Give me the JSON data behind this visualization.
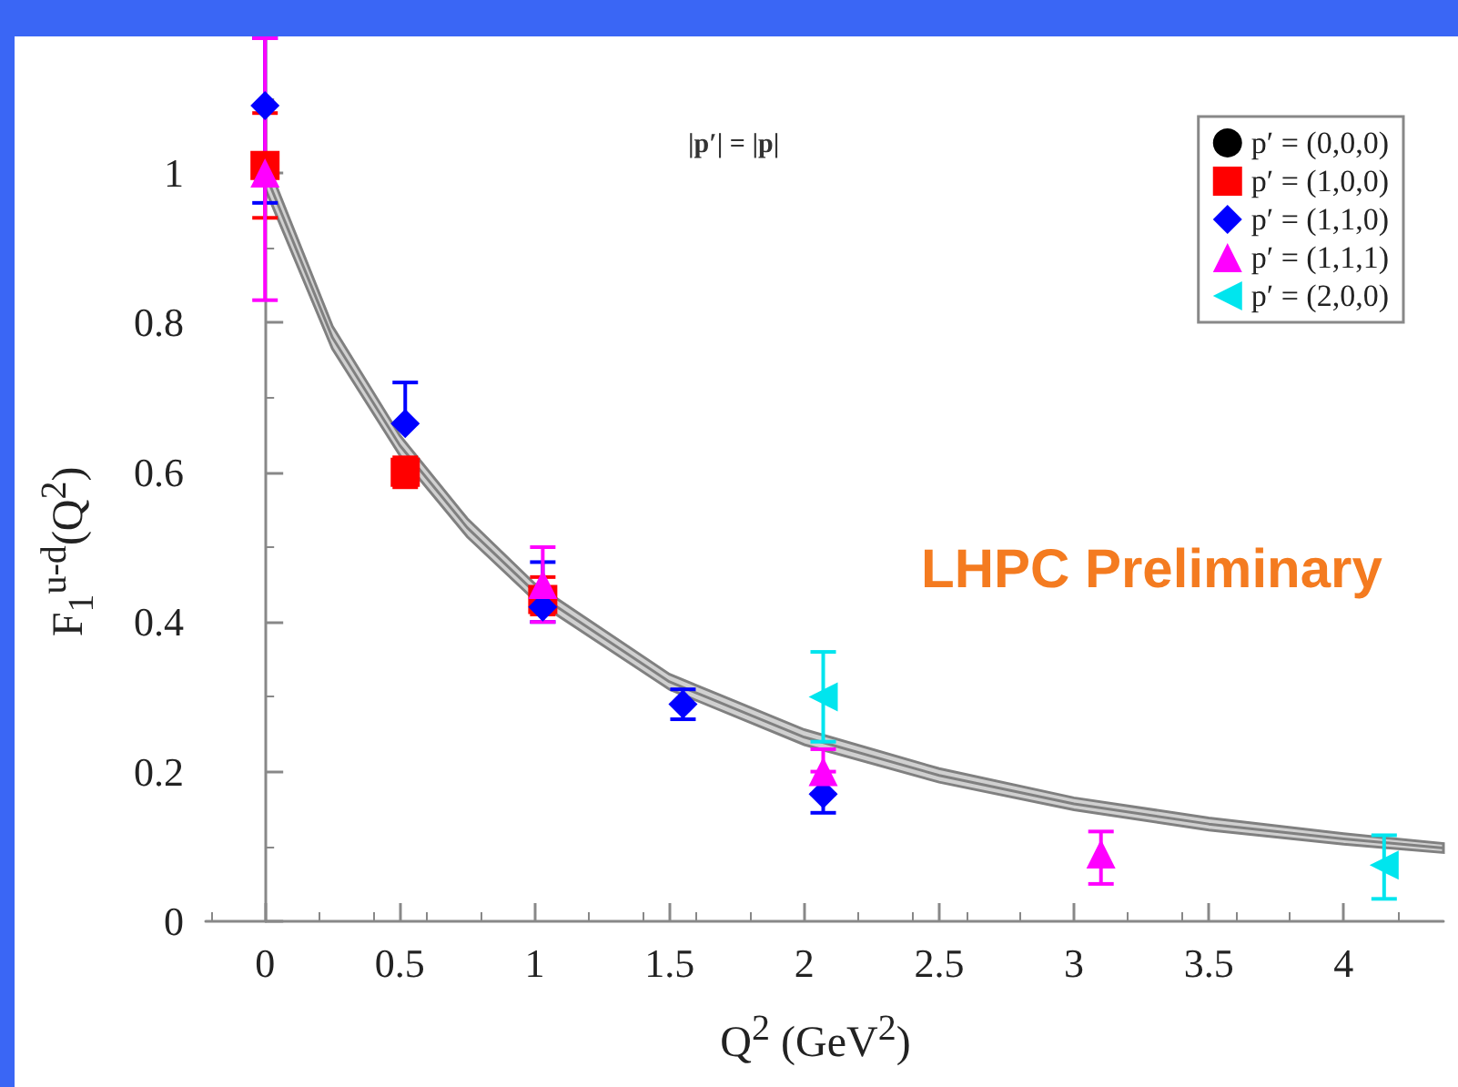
{
  "chart_data": {
    "type": "scatter",
    "xlabel": "Q$^{2}$  (GeV$^{2}$)",
    "ylabel": "F$_{1}$$^{u-d}$(Q$^{2}$)",
    "xlim": [
      -0.22,
      4.37
    ],
    "xticks": [
      0,
      0.5,
      1,
      1.5,
      2,
      2.5,
      3,
      3.5,
      4
    ],
    "ylim": [
      0,
      1.18
    ],
    "yticks": [
      0,
      0.2,
      0.4,
      0.6,
      0.8,
      1
    ],
    "grid": false,
    "legend": "top right",
    "annotations": [
      "|p′| = |p|",
      "LHPC Preliminary"
    ],
    "series": [
      {
        "name": "p′ = (0,0,0)",
        "color": "#000000",
        "marker": "circle"
      },
      {
        "name": "p′ = (1,0,0)",
        "color": "#ff0000",
        "marker": "square",
        "x": [
          0,
          0.52,
          1.03
        ],
        "values": [
          1.01,
          0.6,
          0.43
        ],
        "errors": [
          [
            0.94,
            1.08
          ],
          [
            0.58,
            0.62
          ],
          [
            0.41,
            0.46
          ]
        ]
      },
      {
        "name": "p′ = (1,1,0)",
        "color": "#0000ff",
        "marker": "diamond",
        "x": [
          0,
          0.52,
          1.03,
          1.55,
          2.07
        ],
        "values": [
          1.09,
          0.665,
          0.42,
          0.29,
          0.17
        ],
        "errors": [
          [
            0.96,
            1.18
          ],
          [
            0.665,
            0.72
          ],
          [
            0.4,
            0.48
          ],
          [
            0.27,
            0.31
          ],
          [
            0.145,
            0.17
          ]
        ]
      },
      {
        "name": "p′ = (1,1,1)",
        "color": "#ff00ff",
        "marker": "triangle",
        "x": [
          0,
          1.03,
          2.07,
          3.1
        ],
        "values": [
          1.0,
          0.45,
          0.2,
          0.09
        ],
        "errors": [
          [
            0.83,
            1.18
          ],
          [
            0.4,
            0.5
          ],
          [
            0.2,
            0.23
          ],
          [
            0.05,
            0.12
          ]
        ]
      },
      {
        "name": "p′ = (2,0,0)",
        "color": "#00e5ee",
        "marker": "triangle-left",
        "x": [
          2.07,
          4.15
        ],
        "values": [
          0.3,
          0.075
        ],
        "errors": [
          [
            0.24,
            0.36
          ],
          [
            0.03,
            0.115
          ]
        ]
      },
      {
        "type": "line",
        "color": "#808080",
        "marker": "none",
        "x": [
          0,
          0.25,
          0.5,
          0.75,
          1,
          1.5,
          2,
          2.5,
          3,
          3.5,
          4,
          4.37
        ],
        "values": [
          1.0,
          0.78,
          0.636,
          0.526,
          0.44,
          0.32,
          0.246,
          0.195,
          0.157,
          0.13,
          0.11,
          0.098
        ],
        "lower": [
          0.98,
          0.765,
          0.623,
          0.514,
          0.429,
          0.31,
          0.236,
          0.186,
          0.149,
          0.122,
          0.103,
          0.092
        ],
        "upper": [
          1.02,
          0.795,
          0.649,
          0.538,
          0.451,
          0.33,
          0.256,
          0.204,
          0.165,
          0.138,
          0.117,
          0.104
        ]
      }
    ]
  }
}
